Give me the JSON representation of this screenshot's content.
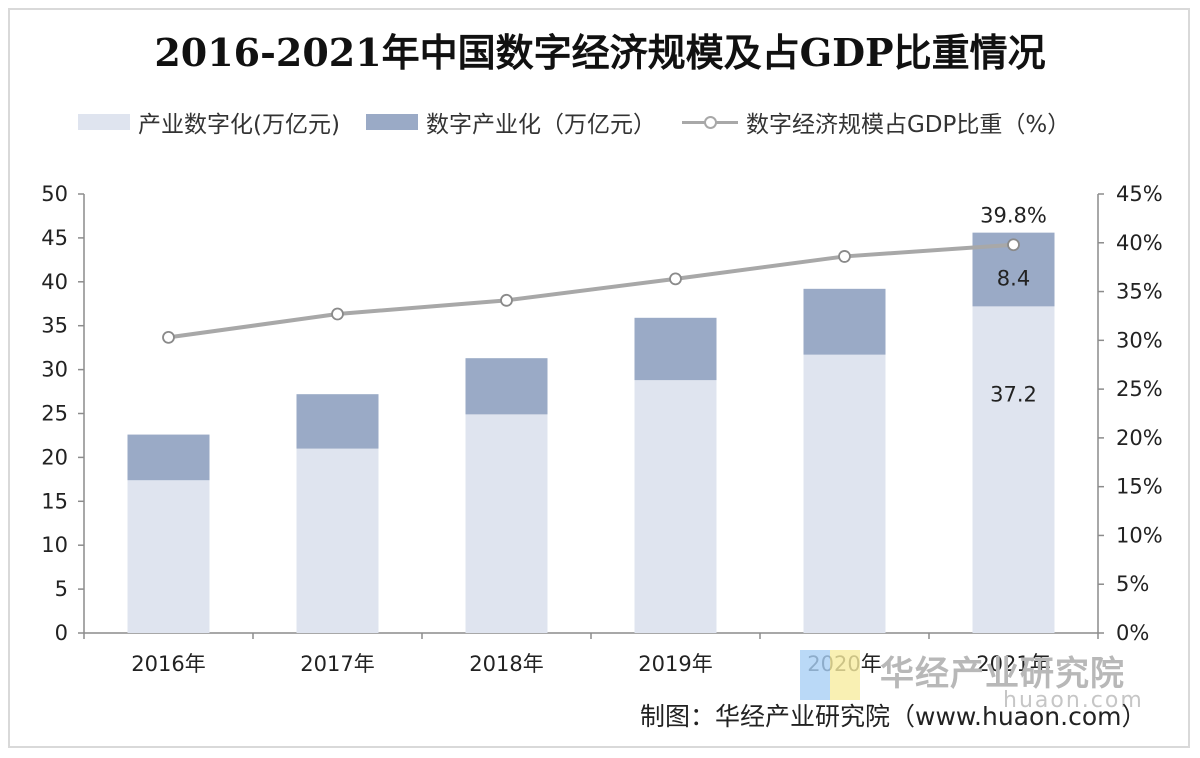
{
  "title": "2016-2021年中国数字经济规模及占GDP比重情况",
  "legend": {
    "item1": "产业数字化(万亿元)",
    "item2": "数字产业化（万亿元）",
    "item3": "数字经济规模占GDP比重（%）"
  },
  "colors": {
    "industry_digitization": "#dfe4ef",
    "digital_industrialization": "#9aaac6",
    "share_line": "#a8a8a8"
  },
  "chart_data": {
    "type": "bar",
    "stacked": true,
    "categories": [
      "2016年",
      "2017年",
      "2018年",
      "2019年",
      "2020年",
      "2021年"
    ],
    "series": [
      {
        "name": "产业数字化(万亿元)",
        "values": [
          17.4,
          21.0,
          24.9,
          28.8,
          31.7,
          37.2
        ],
        "axis": "left"
      },
      {
        "name": "数字产业化（万亿元）",
        "values": [
          5.2,
          6.2,
          6.4,
          7.1,
          7.5,
          8.4
        ],
        "axis": "left"
      },
      {
        "name": "数字经济规模占GDP比重（%）",
        "type": "line",
        "values": [
          30.3,
          32.7,
          34.1,
          36.3,
          38.6,
          39.8
        ],
        "axis": "right"
      }
    ],
    "ylim": [
      0,
      50
    ],
    "y_ticks": [
      "0",
      "5",
      "10",
      "15",
      "20",
      "25",
      "30",
      "35",
      "40",
      "45",
      "50"
    ],
    "y2lim": [
      0,
      45
    ],
    "y2_ticks": [
      "0%",
      "5%",
      "10%",
      "15%",
      "20%",
      "25%",
      "30%",
      "35%",
      "40%",
      "45%"
    ],
    "data_labels": [
      {
        "text": "39.8%"
      },
      {
        "text": "8.4"
      },
      {
        "text": "37.2"
      }
    ],
    "grid": false,
    "legend_position": "top-left"
  },
  "watermark": {
    "brand": "华经产业研究院",
    "site": "huaon.com"
  },
  "source": "制图：华经产业研究院（www.huaon.com）"
}
